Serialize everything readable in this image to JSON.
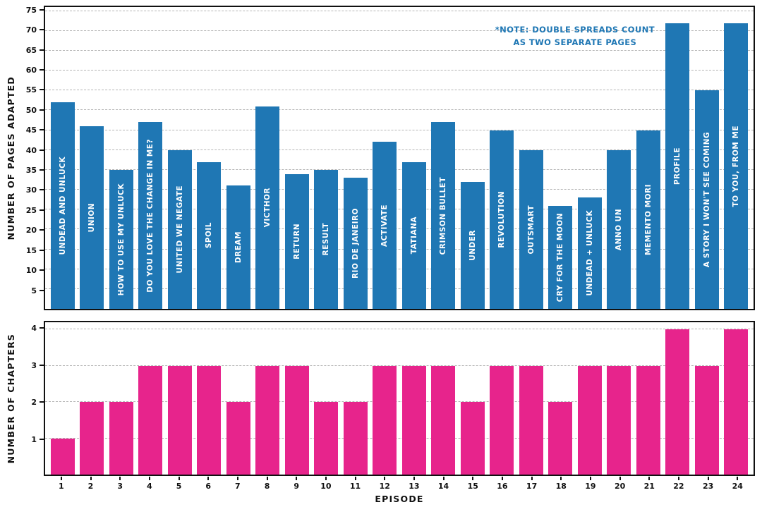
{
  "colors": {
    "pages_bar": "#1f77b4",
    "chapters_bar": "#e7248c",
    "grid": "#b4b4b4",
    "axis": "#111111",
    "note_text": "#1f77b4",
    "bar_label_text": "#ffffff",
    "background": "#ffffff"
  },
  "chart_data": [
    {
      "type": "bar",
      "ylabel": "NUMBER OF PAGES ADAPTED",
      "categories": [
        "1",
        "2",
        "3",
        "4",
        "5",
        "6",
        "7",
        "8",
        "9",
        "10",
        "11",
        "12",
        "13",
        "14",
        "15",
        "16",
        "17",
        "18",
        "19",
        "20",
        "21",
        "22",
        "23",
        "24"
      ],
      "bar_labels": [
        "UNDEAD AND UNLUCK",
        "UNION",
        "HOW TO USE MY UNLUCK",
        "DO YOU LOVE THE CHANGE IN ME?",
        "UNITED WE NEGATE",
        "SPOIL",
        "DREAM",
        "VICTHOR",
        "RETURN",
        "RESULT",
        "RIO DE JANEIRO",
        "ACTIVATE",
        "TATIANA",
        "CRIMSON BULLET",
        "UNDER",
        "REVOLUTION",
        "OUTSMART",
        "CRY FOR THE MOON",
        "UNDEAD + UNLUCK",
        "ANNO UN",
        "MEMENTO MORI",
        "PROFILE",
        "A STORY I WON'T SEE COMING",
        "TO YOU, FROM ME"
      ],
      "values": [
        52,
        46,
        35,
        47,
        40,
        37,
        31,
        51,
        34,
        35,
        33,
        42,
        37,
        47,
        32,
        45,
        40,
        26,
        28,
        40,
        45,
        72,
        55,
        72
      ],
      "ylim": [
        0,
        76
      ],
      "yticks": [
        5,
        10,
        15,
        20,
        25,
        30,
        35,
        40,
        45,
        50,
        55,
        60,
        65,
        70,
        75
      ],
      "grid": true,
      "annotation_lines": [
        "*NOTE: DOUBLE SPREADS COUNT",
        "AS TWO SEPARATE PAGES"
      ]
    },
    {
      "type": "bar",
      "ylabel": "NUMBER OF CHAPTERS",
      "xlabel": "EPISODE",
      "categories": [
        "1",
        "2",
        "3",
        "4",
        "5",
        "6",
        "7",
        "8",
        "9",
        "10",
        "11",
        "12",
        "13",
        "14",
        "15",
        "16",
        "17",
        "18",
        "19",
        "20",
        "21",
        "22",
        "23",
        "24"
      ],
      "values": [
        1,
        2,
        2,
        3,
        3,
        3,
        2,
        3,
        3,
        2,
        2,
        3,
        3,
        3,
        2,
        3,
        3,
        2,
        3,
        3,
        3,
        4,
        3,
        4
      ],
      "ylim": [
        0,
        4.2
      ],
      "yticks": [
        1,
        2,
        3,
        4
      ],
      "grid": true
    }
  ]
}
